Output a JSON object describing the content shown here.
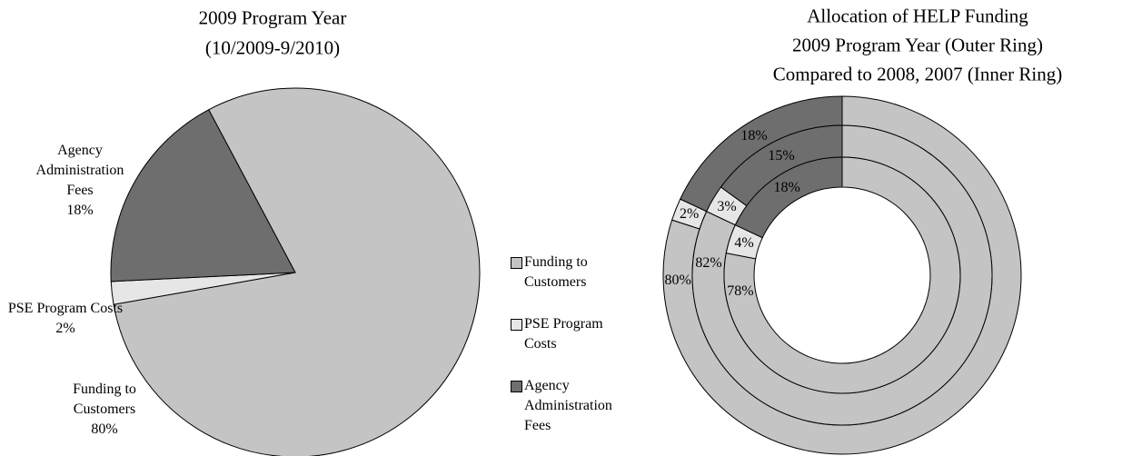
{
  "chart_data": [
    {
      "type": "pie",
      "title": [
        "2009 Program Year",
        "(10/2009-9/2010)"
      ],
      "categories": [
        "Funding to Customers",
        "PSE Program Costs",
        "Agency Administration Fees"
      ],
      "values": [
        80,
        2,
        18
      ],
      "value_labels": [
        "80%",
        "2%",
        "18%"
      ],
      "colors": [
        "#c4c4c4",
        "#e6e6e6",
        "#6e6e6e"
      ]
    },
    {
      "type": "donut",
      "title": [
        "Allocation of HELP Funding",
        "2009 Program Year (Outer Ring)",
        "Compared to 2008, 2007 (Inner Ring)"
      ],
      "categories": [
        "Funding to Customers",
        "PSE Program Costs",
        "Agency Administration Fees"
      ],
      "colors": [
        "#c4c4c4",
        "#e6e6e6",
        "#6e6e6e"
      ],
      "series": [
        {
          "values": [
            80,
            2,
            18
          ],
          "value_labels": [
            "80%",
            "2%",
            "18%"
          ]
        },
        {
          "values": [
            82,
            3,
            15
          ],
          "value_labels": [
            "82%",
            "3%",
            "15%"
          ]
        },
        {
          "values": [
            78,
            4,
            18
          ],
          "value_labels": [
            "78%",
            "4%",
            "18%"
          ]
        }
      ]
    }
  ]
}
